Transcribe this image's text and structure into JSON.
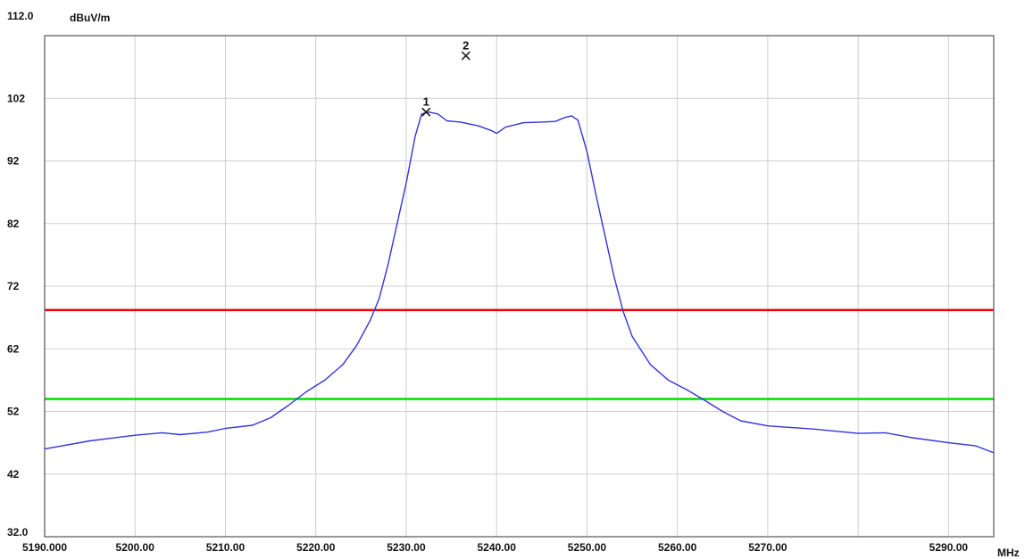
{
  "chart_data": {
    "type": "line",
    "title": "",
    "xlabel": "MHz",
    "ylabel": "dBuV/m",
    "xlim": [
      5190,
      5295
    ],
    "ylim": [
      32,
      112
    ],
    "grid": true,
    "x_ticks": [
      {
        "value": 5190,
        "label": "5190.000"
      },
      {
        "value": 5200,
        "label": "5200.00"
      },
      {
        "value": 5210,
        "label": "5210.00"
      },
      {
        "value": 5220,
        "label": "5220.00"
      },
      {
        "value": 5230,
        "label": "5230.00"
      },
      {
        "value": 5240,
        "label": "5240.00"
      },
      {
        "value": 5250,
        "label": "5250.00"
      },
      {
        "value": 5260,
        "label": "5260.00"
      },
      {
        "value": 5270,
        "label": "5270.00"
      },
      {
        "value": 5290,
        "label": "5290.00"
      }
    ],
    "x_gridlines": [
      5200,
      5210,
      5220,
      5230,
      5240,
      5250,
      5260,
      5270,
      5280,
      5290
    ],
    "y_ticks": [
      {
        "value": 32,
        "label": "32.0"
      },
      {
        "value": 42,
        "label": "42"
      },
      {
        "value": 52,
        "label": "52"
      },
      {
        "value": 62,
        "label": "62"
      },
      {
        "value": 72,
        "label": "72"
      },
      {
        "value": 82,
        "label": "82"
      },
      {
        "value": 92,
        "label": "92"
      },
      {
        "value": 102,
        "label": "102"
      },
      {
        "value": 112,
        "label": "112.0"
      }
    ],
    "series": [
      {
        "color": "#3333dd",
        "points": [
          [
            5190,
            46.0
          ],
          [
            5195,
            47.3
          ],
          [
            5200,
            48.2
          ],
          [
            5203,
            48.6
          ],
          [
            5205,
            48.3
          ],
          [
            5208,
            48.7
          ],
          [
            5210,
            49.3
          ],
          [
            5213,
            49.8
          ],
          [
            5215,
            51.0
          ],
          [
            5217,
            53.0
          ],
          [
            5219,
            55.2
          ],
          [
            5221,
            57.0
          ],
          [
            5223,
            59.5
          ],
          [
            5224.5,
            62.5
          ],
          [
            5226,
            66.5
          ],
          [
            5227,
            70.0
          ],
          [
            5228,
            75.5
          ],
          [
            5229,
            82.0
          ],
          [
            5230,
            88.5
          ],
          [
            5231,
            96.0
          ],
          [
            5231.7,
            99.5
          ],
          [
            5232.5,
            99.8
          ],
          [
            5233.5,
            99.5
          ],
          [
            5234.5,
            98.4
          ],
          [
            5236,
            98.2
          ],
          [
            5238,
            97.6
          ],
          [
            5239.5,
            96.8
          ],
          [
            5240,
            96.4
          ],
          [
            5241,
            97.4
          ],
          [
            5243,
            98.1
          ],
          [
            5245,
            98.2
          ],
          [
            5246.5,
            98.3
          ],
          [
            5247.5,
            98.9
          ],
          [
            5248.3,
            99.2
          ],
          [
            5249,
            98.5
          ],
          [
            5250,
            93.5
          ],
          [
            5251,
            86.5
          ],
          [
            5252,
            80.0
          ],
          [
            5253,
            73.5
          ],
          [
            5254,
            68.0
          ],
          [
            5255,
            64.0
          ],
          [
            5257,
            59.5
          ],
          [
            5259,
            57.0
          ],
          [
            5261,
            55.5
          ],
          [
            5263,
            53.8
          ],
          [
            5265,
            52.0
          ],
          [
            5267,
            50.5
          ],
          [
            5270,
            49.7
          ],
          [
            5275,
            49.2
          ],
          [
            5280,
            48.5
          ],
          [
            5283,
            48.6
          ],
          [
            5286,
            47.8
          ],
          [
            5290,
            47.0
          ],
          [
            5293,
            46.5
          ],
          [
            5295,
            45.4
          ]
        ]
      }
    ],
    "limit_lines": [
      {
        "value": 68.2,
        "color": "#ee0000"
      },
      {
        "value": 54.0,
        "color": "#00dd00"
      }
    ],
    "markers": [
      {
        "label": "1",
        "x": 5232.2,
        "y": 99.8
      },
      {
        "label": "2",
        "x": 5236.6,
        "y": 108.8
      }
    ]
  }
}
